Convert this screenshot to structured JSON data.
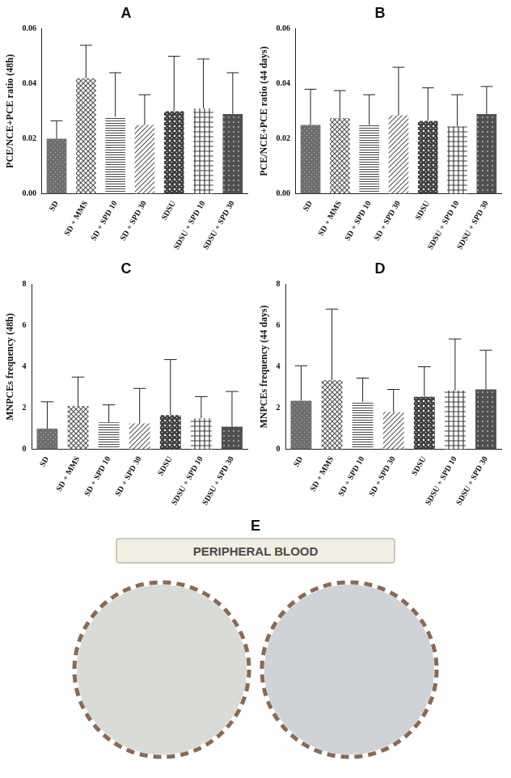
{
  "chart_data": [
    {
      "type": "bar",
      "title": "A",
      "y_label": "PCE/NCE+PCE ratio (48h)",
      "categories": [
        "SD",
        "SD + MMS",
        "SD + SPD 10",
        "SD + SPD 30",
        "SDSU",
        "SDSU + SPD 10",
        "SDSU + SPD 30"
      ],
      "values": [
        0.02,
        0.042,
        0.028,
        0.025,
        0.03,
        0.031,
        0.029
      ],
      "errors": [
        0.0065,
        0.012,
        0.016,
        0.011,
        0.02,
        0.018,
        0.015
      ],
      "colors": [
        "#6e6e6e",
        "#555555",
        "#4a4a4a",
        "#5a5a5a",
        "#444444",
        "#3c3c3c",
        "#505050"
      ],
      "ylim": [
        0,
        0.06
      ],
      "yticks": [
        {
          "value": 0,
          "label": "0.00"
        },
        0.02,
        0.04,
        0.06
      ],
      "grid": false
    },
    {
      "type": "bar",
      "title": "B",
      "y_label": "PCE/NCE+PCE ratio (44 days)",
      "categories": [
        "SD",
        "SD + MMS",
        "SD + SPD 10",
        "SD + SPD 30",
        "SDSU",
        "SDSU + SPD 10",
        "SDSU + SPD 30"
      ],
      "values": [
        0.025,
        0.0275,
        0.025,
        0.0285,
        0.0265,
        0.0245,
        0.029
      ],
      "errors": [
        0.013,
        0.01,
        0.011,
        0.0175,
        0.012,
        0.0115,
        0.01
      ],
      "colors": [
        "#6e6e6e",
        "#555555",
        "#4a4a4a",
        "#5a5a5a",
        "#444444",
        "#3c3c3c",
        "#505050"
      ],
      "ylim": [
        0,
        0.06
      ],
      "yticks": [
        {
          "value": 0,
          "label": "0.00"
        },
        0.02,
        0.04,
        0.06
      ],
      "grid": false
    },
    {
      "type": "bar",
      "title": "C",
      "y_label": "MNPCEs frequency (48h)",
      "categories": [
        "SD",
        "SD + MMS",
        "SD + SPD 10",
        "SD + SPD 30",
        "SDSU",
        "SDSU + SPD 10",
        "SDSU + SPD 30"
      ],
      "values": [
        1.0,
        2.1,
        1.3,
        1.25,
        1.65,
        1.5,
        1.1
      ],
      "errors": [
        1.3,
        1.4,
        0.85,
        1.7,
        2.7,
        1.05,
        1.7
      ],
      "colors": [
        "#6e6e6e",
        "#555555",
        "#4a4a4a",
        "#5a5a5a",
        "#444444",
        "#3c3c3c",
        "#505050"
      ],
      "ylim": [
        0,
        8
      ],
      "yticks": [
        0,
        2,
        4,
        6,
        8
      ],
      "grid": false
    },
    {
      "type": "bar",
      "title": "D",
      "y_label": "MNPCEs frequency (44 days)",
      "categories": [
        "SD",
        "SD + MMS",
        "SD + SPD 10",
        "SD + SPD 30",
        "SDSU",
        "SDSU + SPD 10",
        "SDSU + SPD 30"
      ],
      "values": [
        2.35,
        3.35,
        2.3,
        1.8,
        2.55,
        2.85,
        2.9
      ],
      "errors": [
        1.7,
        3.45,
        1.15,
        1.1,
        1.45,
        2.5,
        1.9
      ],
      "colors": [
        "#6e6e6e",
        "#555555",
        "#4a4a4a",
        "#5a5a5a",
        "#444444",
        "#3c3c3c",
        "#505050"
      ],
      "ylim": [
        0,
        8
      ],
      "yticks": [
        0,
        2,
        4,
        6,
        8
      ],
      "grid": false
    }
  ],
  "panel_e": {
    "label": "E",
    "title": "PERIPHERAL BLOOD"
  }
}
